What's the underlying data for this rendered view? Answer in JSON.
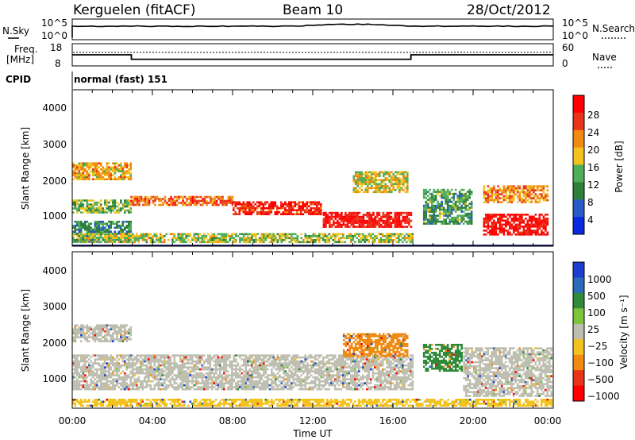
{
  "header": {
    "station": "Kerguelen (fitACF)",
    "beam": "Beam 10",
    "date": "28/Oct/2012"
  },
  "noise_panel": {
    "left_label": "N.Sky",
    "right_label": "N.Search",
    "left_ticks": [
      "10^5",
      "10^0"
    ],
    "right_ticks": [
      "10^5",
      "10^0"
    ]
  },
  "freq_panel": {
    "left_label_1": "Freq.",
    "left_label_2": "[MHz]",
    "left_ticks": [
      "18",
      "8"
    ],
    "right_label": "Nave",
    "right_ticks": [
      "60",
      "0"
    ]
  },
  "cpid": {
    "label": "CPID",
    "text": "normal (fast) 151"
  },
  "power_panel": {
    "ylabel": "Slant Range [km]",
    "y_ticks": [
      "4000",
      "3000",
      "2000",
      "1000"
    ],
    "colorbar_label": "Power [dB]",
    "colorbar_ticks": [
      "28",
      "24",
      "20",
      "16",
      "12",
      "8",
      "4"
    ]
  },
  "velocity_panel": {
    "ylabel": "Slant Range [km]",
    "y_ticks": [
      "4000",
      "3000",
      "2000",
      "1000"
    ],
    "colorbar_label": "Velocity [m s⁻¹]",
    "colorbar_ticks": [
      "1000",
      "500",
      "100",
      "25",
      "−25",
      "−100",
      "−500",
      "−1000"
    ]
  },
  "x_axis": {
    "label": "Time UT",
    "ticks": [
      "00:00",
      "04:00",
      "08:00",
      "12:00",
      "16:00",
      "20:00",
      "00:00"
    ]
  },
  "colors": {
    "power_scale": [
      "#0a28e0",
      "#2a5ac8",
      "#2f7f3a",
      "#4fae5a",
      "#f2c21e",
      "#f08a12",
      "#e8351a",
      "#ff0000"
    ],
    "velocity_scale": [
      "#1a3fd0",
      "#2a6ab8",
      "#2f8a3a",
      "#7cc43a",
      "#bdbdb0",
      "#f2c21e",
      "#f08a12",
      "#e8351a",
      "#ff0000"
    ]
  },
  "chart_data": {
    "type": "heatmap",
    "x_range_hours": [
      0,
      24
    ],
    "range_km": [
      180,
      4600
    ],
    "power": {
      "range_dB": [
        0,
        32
      ],
      "bands": [
        {
          "t0": 0.0,
          "t1": 3.0,
          "r0": 2050,
          "r1": 2550,
          "level": 20
        },
        {
          "t0": 0.0,
          "t1": 3.0,
          "r0": 1100,
          "r1": 1500,
          "level": 14
        },
        {
          "t0": 0.0,
          "t1": 3.0,
          "r0": 300,
          "r1": 900,
          "level": 10
        },
        {
          "t0": 2.9,
          "t1": 8.0,
          "r0": 1300,
          "r1": 1600,
          "level": 24
        },
        {
          "t0": 8.0,
          "t1": 12.5,
          "r0": 1050,
          "r1": 1450,
          "level": 28
        },
        {
          "t0": 12.5,
          "t1": 17.0,
          "r0": 700,
          "r1": 1150,
          "level": 30
        },
        {
          "t0": 14.0,
          "t1": 16.8,
          "r0": 1700,
          "r1": 2300,
          "level": 18
        },
        {
          "t0": 17.5,
          "t1": 20.0,
          "r0": 800,
          "r1": 1800,
          "level": 12
        },
        {
          "t0": 20.5,
          "t1": 23.8,
          "r0": 500,
          "r1": 1100,
          "level": 30
        },
        {
          "t0": 20.5,
          "t1": 23.8,
          "r0": 1400,
          "r1": 1900,
          "level": 22
        },
        {
          "t0": 0.0,
          "t1": 17.0,
          "r0": 250,
          "r1": 550,
          "level": 16
        }
      ]
    },
    "velocity": {
      "range_ms": [
        -1000,
        1000
      ],
      "bands": [
        {
          "t0": 0.0,
          "t1": 3.0,
          "r0": 2050,
          "r1": 2550,
          "value": 0
        },
        {
          "t0": 0.0,
          "t1": 17.0,
          "r0": 700,
          "r1": 1700,
          "value": 0
        },
        {
          "t0": 13.5,
          "t1": 16.8,
          "r0": 1600,
          "r1": 2300,
          "value": -400
        },
        {
          "t0": 17.5,
          "t1": 19.5,
          "r0": 1200,
          "r1": 2000,
          "value": 150
        },
        {
          "t0": 19.5,
          "t1": 24.0,
          "r0": 500,
          "r1": 1900,
          "value": 0
        },
        {
          "t0": 0.0,
          "t1": 24.0,
          "r0": 200,
          "r1": 450,
          "value": -60
        }
      ]
    },
    "frequency": {
      "steps": [
        {
          "t0": 0,
          "t1": 2.95,
          "mhz": 13
        },
        {
          "t0": 2.95,
          "t1": 16.9,
          "mhz": 11
        },
        {
          "t0": 16.9,
          "t1": 24,
          "mhz": 13
        }
      ]
    },
    "nave": {
      "value": 38
    }
  }
}
